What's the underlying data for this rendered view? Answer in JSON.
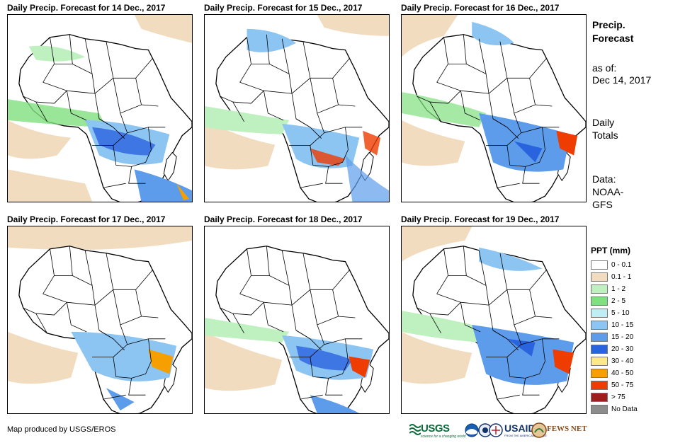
{
  "panels": [
    {
      "title": "Daily Precip. Forecast for 14 Dec., 2017"
    },
    {
      "title": "Daily Precip. Forecast for 15 Dec., 2017"
    },
    {
      "title": "Daily Precip. Forecast for 16 Dec., 2017"
    },
    {
      "title": "Daily Precip. Forecast for 17 Dec., 2017"
    },
    {
      "title": "Daily Precip. Forecast for 18 Dec., 2017"
    },
    {
      "title": "Daily Precip. Forecast for 19 Dec., 2017"
    }
  ],
  "sidebar": {
    "title_line1": "Precip.",
    "title_line2": "Forecast",
    "asof_label": "as of:",
    "asof_date": "Dec 14, 2017",
    "daily_line1": "Daily",
    "daily_line2": "Totals",
    "data_line1": "Data:",
    "data_line2": "NOAA-",
    "data_line3": "GFS"
  },
  "legend": {
    "title": "PPT (mm)",
    "items": [
      {
        "label": "0 - 0.1",
        "color": "#ffffff"
      },
      {
        "label": "0.1 - 1",
        "color": "#f2dcbf"
      },
      {
        "label": "1 - 2",
        "color": "#bff0bf"
      },
      {
        "label": "2 - 5",
        "color": "#7fe07f"
      },
      {
        "label": "5 - 10",
        "color": "#bfeff5"
      },
      {
        "label": "10 - 15",
        "color": "#8cc4f2"
      },
      {
        "label": "15 - 20",
        "color": "#5c9cea"
      },
      {
        "label": "20 - 30",
        "color": "#2a63de"
      },
      {
        "label": "30 - 40",
        "color": "#fde98a"
      },
      {
        "label": "40 - 50",
        "color": "#f5a000"
      },
      {
        "label": "50 - 75",
        "color": "#ef3c00"
      },
      {
        "label": "> 75",
        "color": "#a11c1c"
      },
      {
        "label": "No Data",
        "color": "#8c8c8c"
      }
    ]
  },
  "credit": "Map produced by USGS/EROS",
  "logos": {
    "usgs": "USGS",
    "usgs_tagline": "science for a changing world",
    "usaid": "USAID",
    "usaid_tagline": "FROM THE AMERICAN PEOPLE",
    "fews": "FEWS NET"
  },
  "colors": {
    "land": "#ffffff",
    "ocean_dry": "#f2dcbf",
    "border": "#000000"
  }
}
